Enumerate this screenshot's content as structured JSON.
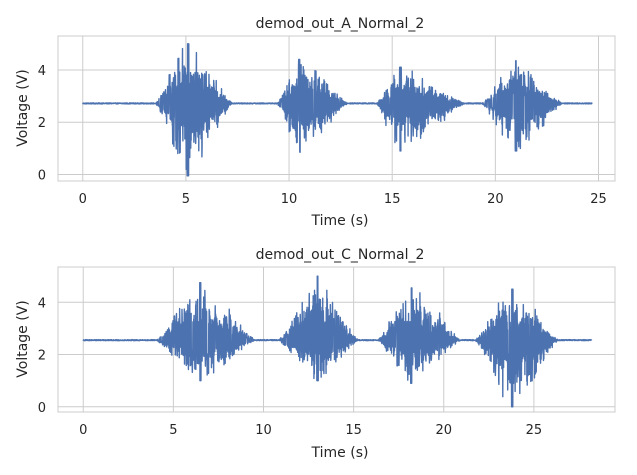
{
  "chart_data": [
    {
      "type": "line",
      "title": "demod_out_A_Normal_2",
      "xlabel": "Time (s)",
      "ylabel": "Voltage (V)",
      "xlim": [
        -1.2,
        25.8
      ],
      "ylim": [
        -0.25,
        5.3
      ],
      "xticks": [
        0,
        5,
        10,
        15,
        20,
        25
      ],
      "yticks": [
        0,
        2,
        4
      ],
      "grid": true,
      "line_color": "#4c72b0",
      "baseline": 2.72,
      "x_range": [
        0,
        24.7
      ],
      "bursts": [
        {
          "start": 3.5,
          "end": 7.3,
          "peak": 5.1,
          "max": 5.0,
          "min": -0.05
        },
        {
          "start": 9.4,
          "end": 12.9,
          "peak": 10.5,
          "max": 4.4,
          "min": 0.85
        },
        {
          "start": 14.2,
          "end": 18.6,
          "peak": 15.4,
          "max": 4.1,
          "min": 0.9
        },
        {
          "start": 19.3,
          "end": 23.3,
          "peak": 21.0,
          "max": 4.35,
          "min": 0.9
        }
      ]
    },
    {
      "type": "line",
      "title": "demod_out_C_Normal_2",
      "xlabel": "Time (s)",
      "ylabel": "Voltage (V)",
      "xlim": [
        -1.4,
        29.5
      ],
      "ylim": [
        -0.2,
        5.35
      ],
      "xticks": [
        0,
        5,
        10,
        15,
        20,
        25
      ],
      "yticks": [
        0,
        2,
        4
      ],
      "grid": true,
      "line_color": "#4c72b0",
      "baseline": 2.55,
      "x_range": [
        0,
        28.2
      ],
      "bursts": [
        {
          "start": 4.0,
          "end": 9.6,
          "peak": 6.5,
          "max": 4.75,
          "min": 1.0
        },
        {
          "start": 10.8,
          "end": 15.3,
          "peak": 13.0,
          "max": 5.0,
          "min": 1.0
        },
        {
          "start": 16.3,
          "end": 21.0,
          "peak": 18.2,
          "max": 4.55,
          "min": 0.9
        },
        {
          "start": 21.7,
          "end": 26.4,
          "peak": 23.8,
          "max": 4.5,
          "min": 0.0
        }
      ]
    }
  ]
}
